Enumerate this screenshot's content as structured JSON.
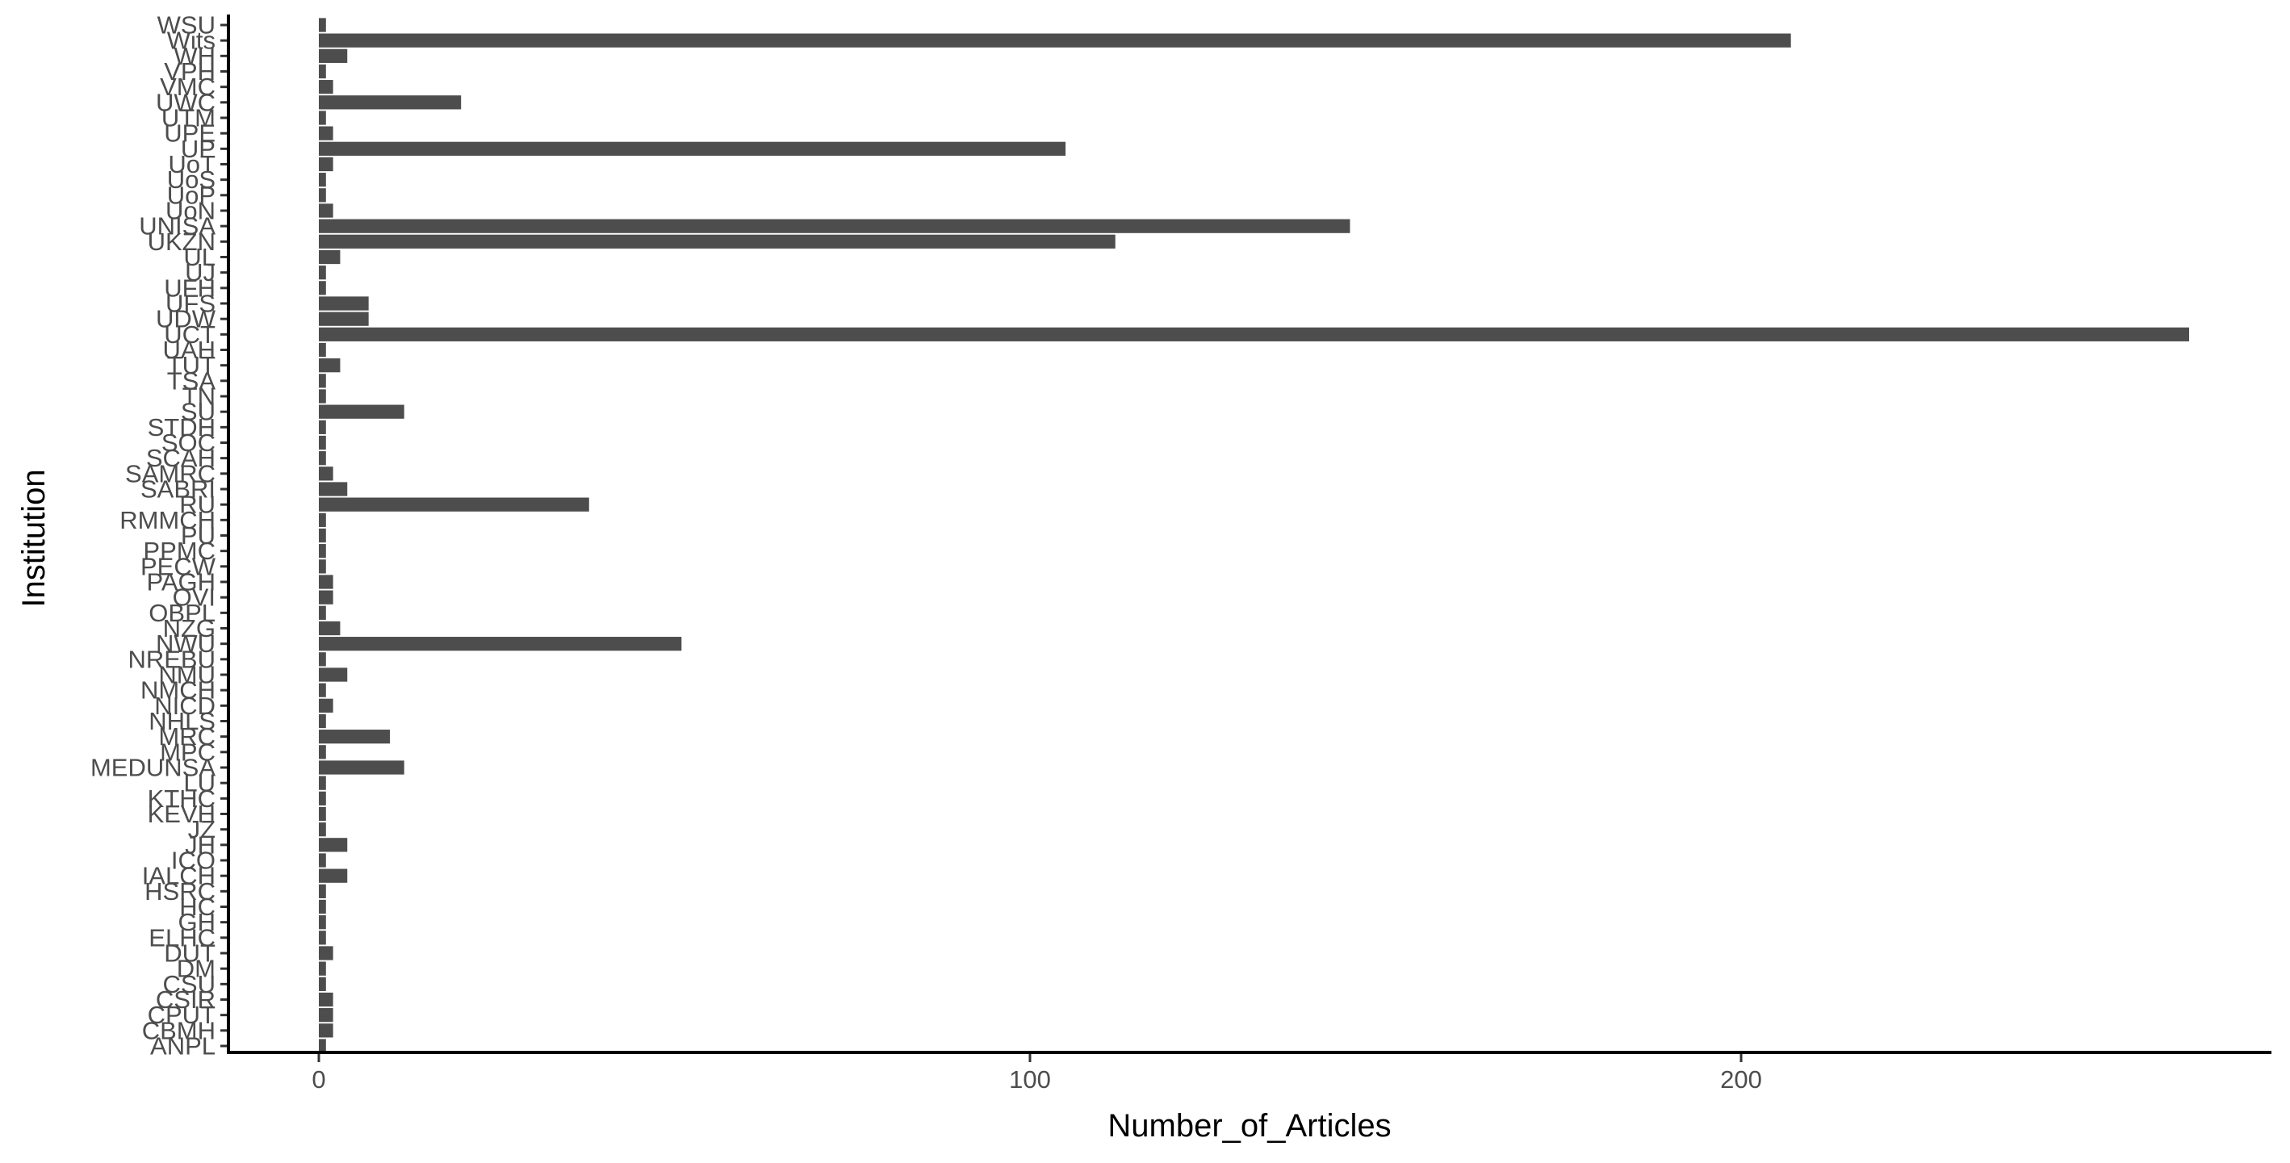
{
  "chart_data": {
    "type": "bar",
    "orientation": "horizontal",
    "title": "",
    "xlabel": "Number_of_Articles",
    "ylabel": "Institution",
    "xlim": [
      -13,
      275
    ],
    "x_ticks": [
      "0",
      "100",
      "200"
    ],
    "x_tick_values": [
      0,
      100,
      200
    ],
    "grid": false,
    "legend": "none",
    "bar_color": "#4d4d4d",
    "categories": [
      "ANPL",
      "CBMH",
      "CPUT",
      "CSIR",
      "CSU",
      "DM",
      "DUT",
      "ELHC",
      "GH",
      "HC",
      "HSRC",
      "IALCH",
      "ICO",
      "JH",
      "JZ",
      "KEVH",
      "KTHC",
      "LU",
      "MEDUNSA",
      "MPC",
      "MRC",
      "NHLS",
      "NICD",
      "NMCH",
      "NMU",
      "NREBU",
      "NWU",
      "NZG",
      "OBPL",
      "OVI",
      "PAGH",
      "PECW",
      "PPMC",
      "PU",
      "RMMCH",
      "RU",
      "SABRI",
      "SAMRC",
      "SCAH",
      "SOC",
      "STDH",
      "SU",
      "TN",
      "TSA",
      "TUT",
      "UAH",
      "UCT",
      "UDW",
      "UFS",
      "UFH",
      "UJ",
      "UL",
      "UKZN",
      "UNISA",
      "UoN",
      "UoP",
      "UoS",
      "UoT",
      "UP",
      "UPE",
      "UTM",
      "UWC",
      "VMC",
      "VPH",
      "WH",
      "Wits",
      "WSU"
    ],
    "values": [
      1,
      2,
      2,
      2,
      1,
      1,
      2,
      1,
      1,
      1,
      1,
      4,
      1,
      4,
      1,
      1,
      1,
      1,
      12,
      1,
      10,
      1,
      2,
      1,
      4,
      1,
      51,
      3,
      1,
      2,
      2,
      1,
      1,
      1,
      1,
      38,
      4,
      2,
      1,
      1,
      1,
      12,
      1,
      1,
      3,
      1,
      263,
      7,
      7,
      1,
      1,
      3,
      112,
      145,
      2,
      1,
      1,
      2,
      105,
      2,
      1,
      20,
      2,
      1,
      4,
      207,
      1
    ]
  }
}
